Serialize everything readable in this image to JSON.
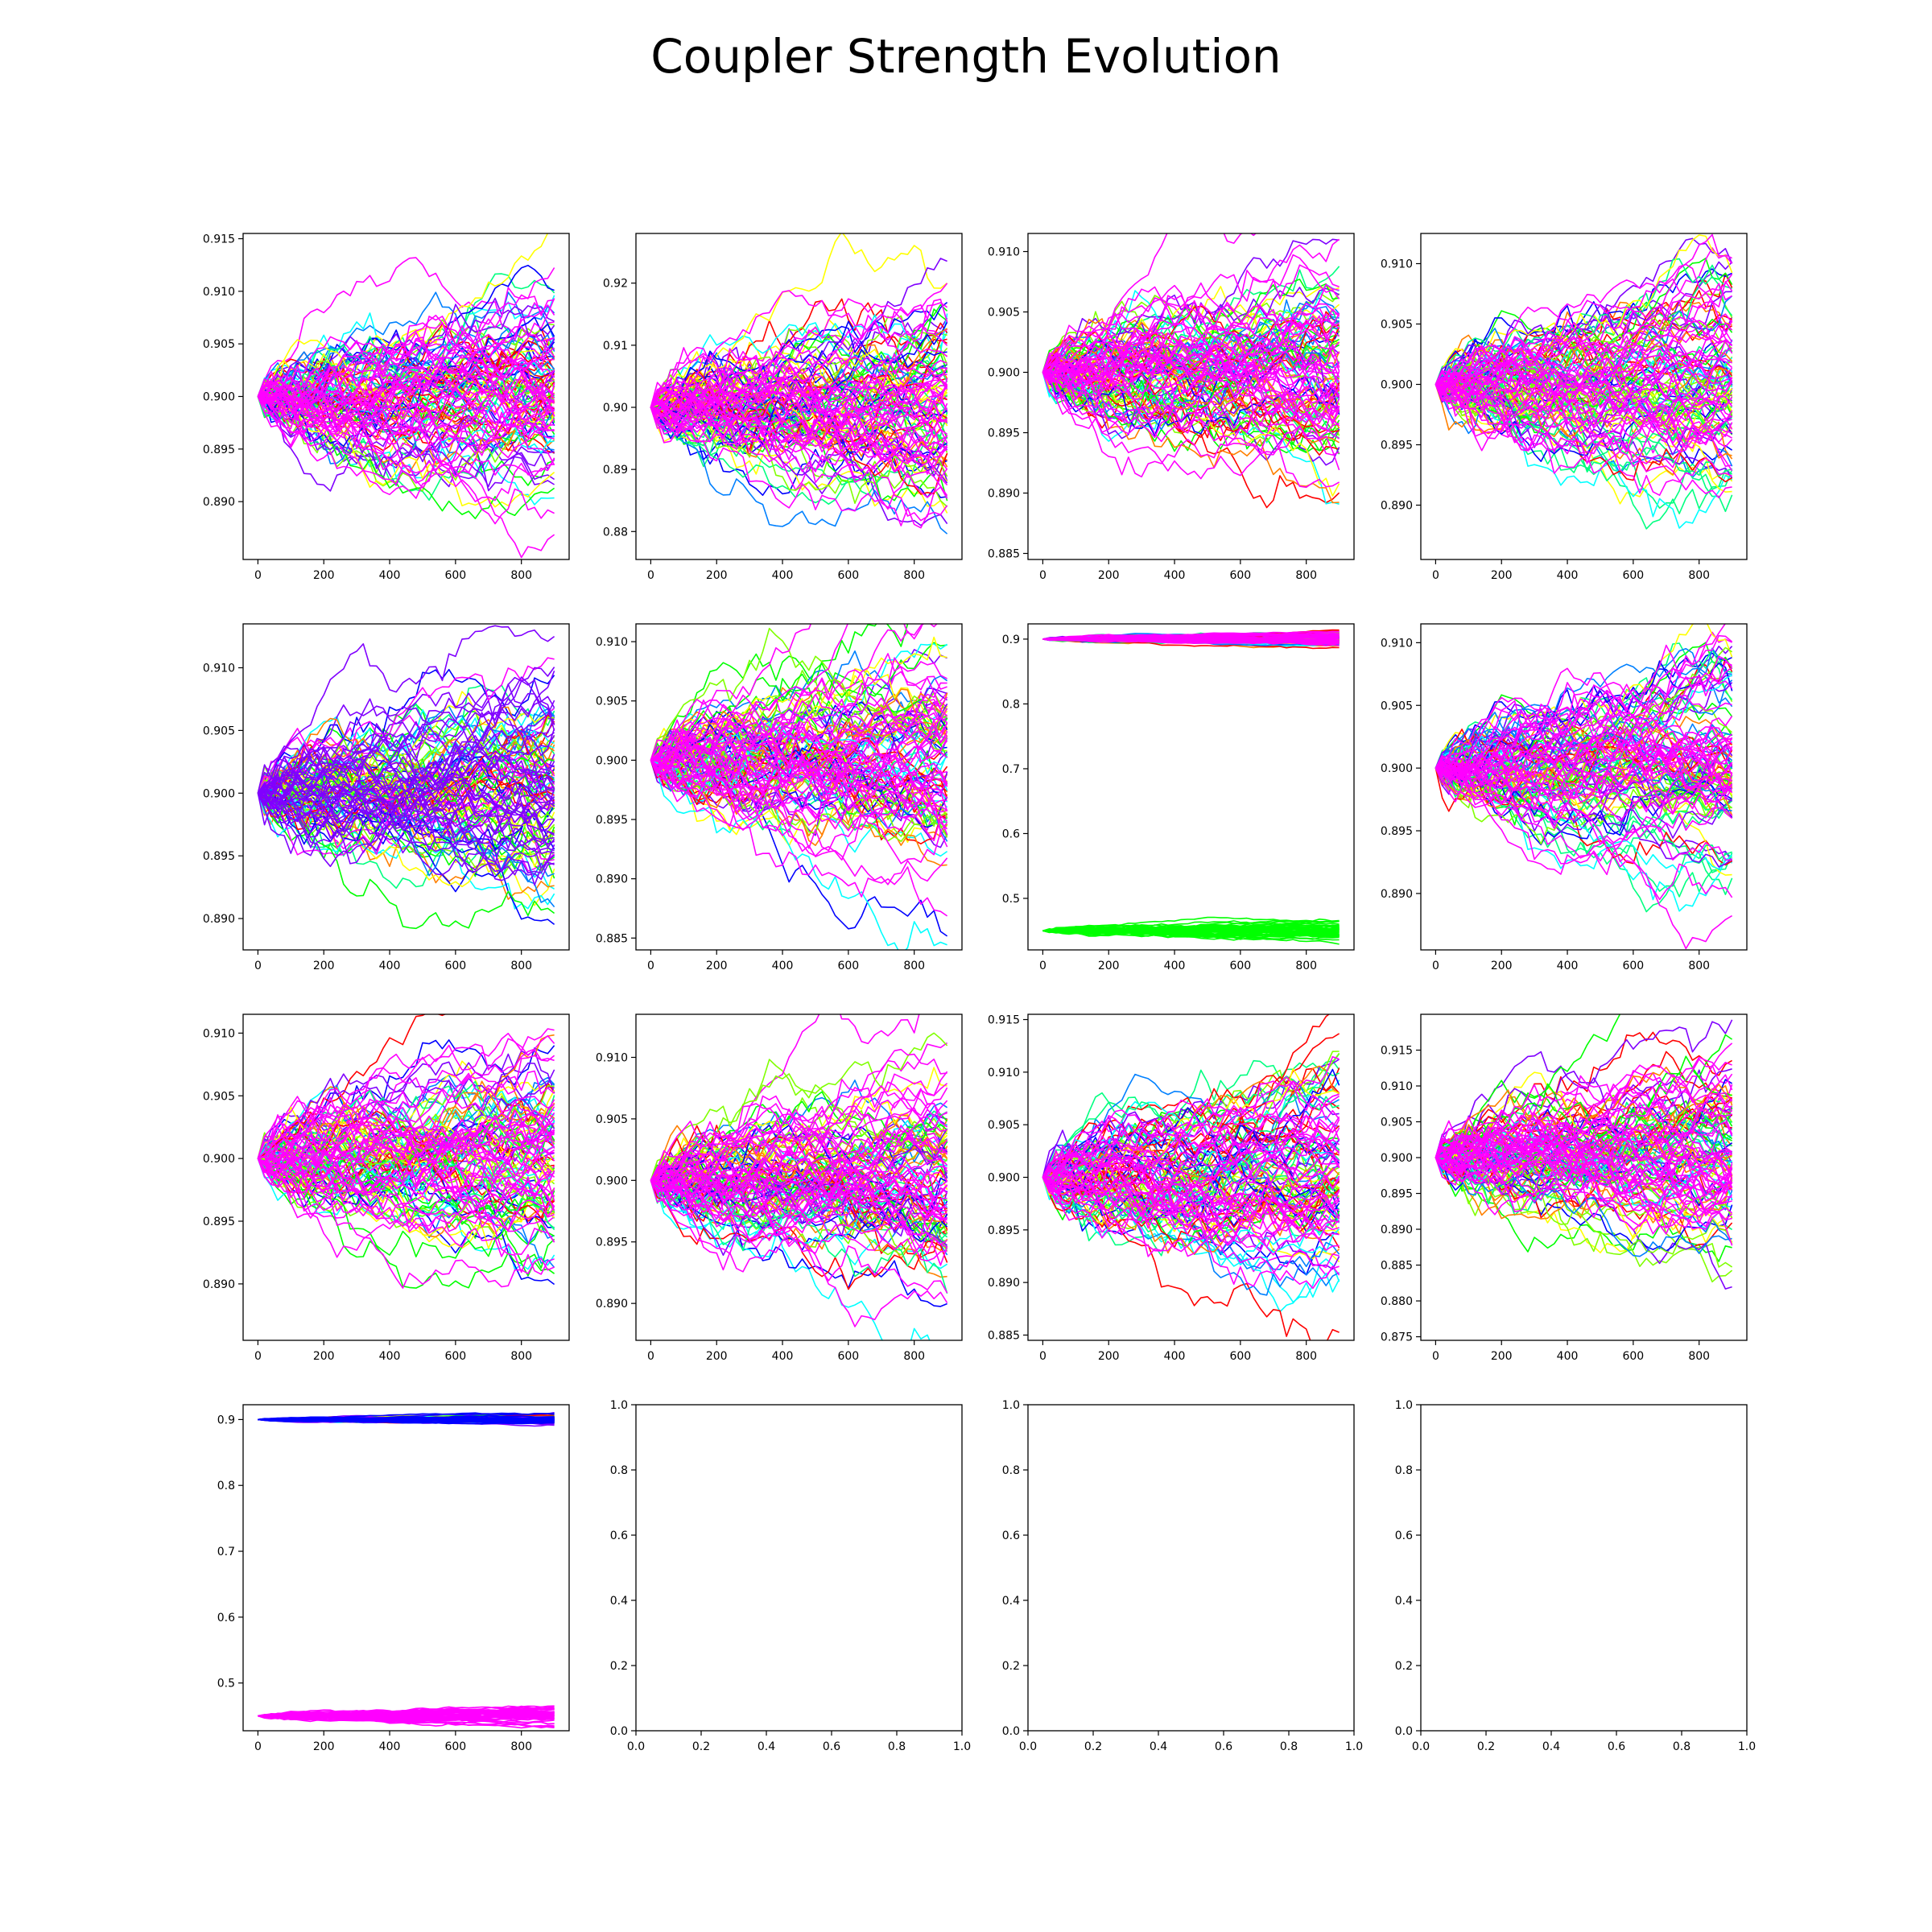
{
  "title": "Coupler Strength Evolution",
  "palette": [
    "#ff0000",
    "#ff8000",
    "#ffff00",
    "#80ff00",
    "#00ff00",
    "#00ff80",
    "#00ffff",
    "#0080ff",
    "#0000ff",
    "#8000ff",
    "#ff00ff"
  ],
  "chart_data": [
    {
      "type": "line",
      "series_count": "many",
      "x_range": [
        0,
        900
      ],
      "ylim": [
        0.8845,
        0.9155
      ],
      "xticks": [
        "0",
        "200",
        "400",
        "600",
        "800"
      ],
      "yticks": [
        "0.890",
        "0.895",
        "0.900",
        "0.905",
        "0.910",
        "0.915"
      ],
      "start": 0.9,
      "spread_at_end": [
        0.887,
        0.914
      ],
      "second_start": null,
      "dominant_color": "#ff00ff"
    },
    {
      "type": "line",
      "series_count": "many",
      "x_range": [
        0,
        900
      ],
      "ylim": [
        0.8755,
        0.928
      ],
      "xticks": [
        "0",
        "200",
        "400",
        "600",
        "800"
      ],
      "yticks": [
        "0.88",
        "0.89",
        "0.90",
        "0.91",
        "0.92"
      ],
      "start": 0.9,
      "spread_at_end": [
        0.878,
        0.925
      ],
      "second_start": null,
      "dominant_color": "#ff00ff"
    },
    {
      "type": "line",
      "series_count": "many",
      "x_range": [
        0,
        900
      ],
      "ylim": [
        0.8845,
        0.9115
      ],
      "xticks": [
        "0",
        "200",
        "400",
        "600",
        "800"
      ],
      "yticks": [
        "0.885",
        "0.890",
        "0.895",
        "0.900",
        "0.905",
        "0.910"
      ],
      "start": 0.9,
      "spread_at_end": [
        0.886,
        0.91
      ],
      "second_start": null,
      "dominant_color": "#ff00ff"
    },
    {
      "type": "line",
      "series_count": "many",
      "x_range": [
        0,
        900
      ],
      "ylim": [
        0.8855,
        0.9125
      ],
      "xticks": [
        "0",
        "200",
        "400",
        "600",
        "800"
      ],
      "yticks": [
        "0.890",
        "0.895",
        "0.900",
        "0.905",
        "0.910"
      ],
      "start": 0.9,
      "spread_at_end": [
        0.887,
        0.911
      ],
      "second_start": null,
      "dominant_color": "#ff00ff"
    },
    {
      "type": "line",
      "series_count": "many",
      "x_range": [
        0,
        900
      ],
      "ylim": [
        0.8875,
        0.9135
      ],
      "xticks": [
        "0",
        "200",
        "400",
        "600",
        "800"
      ],
      "yticks": [
        "0.890",
        "0.895",
        "0.900",
        "0.905",
        "0.910"
      ],
      "start": 0.9,
      "spread_at_end": [
        0.889,
        0.913
      ],
      "second_start": null,
      "dominant_color": "#8000ff"
    },
    {
      "type": "line",
      "series_count": "many",
      "x_range": [
        0,
        900
      ],
      "ylim": [
        0.884,
        0.9115
      ],
      "xticks": [
        "0",
        "200",
        "400",
        "600",
        "800"
      ],
      "yticks": [
        "0.885",
        "0.890",
        "0.895",
        "0.900",
        "0.905",
        "0.910"
      ],
      "start": 0.9,
      "spread_at_end": [
        0.885,
        0.911
      ],
      "second_start": null,
      "dominant_color": "#ff00ff"
    },
    {
      "type": "line",
      "series_count": "many",
      "x_range": [
        0,
        900
      ],
      "ylim": [
        0.4205,
        0.9235
      ],
      "xticks": [
        "0",
        "200",
        "400",
        "600",
        "800"
      ],
      "yticks": [
        "0.5",
        "0.6",
        "0.7",
        "0.8",
        "0.9"
      ],
      "start": 0.9,
      "spread_at_end": [
        0.888,
        0.912
      ],
      "second_start": 0.45,
      "second_spread_at_end": [
        0.43,
        0.47
      ],
      "second_color": "#00ff00",
      "dominant_color": "#ff00ff"
    },
    {
      "type": "line",
      "series_count": "many",
      "x_range": [
        0,
        900
      ],
      "ylim": [
        0.8855,
        0.9115
      ],
      "xticks": [
        "0",
        "200",
        "400",
        "600",
        "800"
      ],
      "yticks": [
        "0.890",
        "0.895",
        "0.900",
        "0.905",
        "0.910"
      ],
      "start": 0.9,
      "spread_at_end": [
        0.887,
        0.91
      ],
      "second_start": null,
      "dominant_color": "#ff00ff"
    },
    {
      "type": "line",
      "series_count": "many",
      "x_range": [
        0,
        900
      ],
      "ylim": [
        0.8855,
        0.9115
      ],
      "xticks": [
        "0",
        "200",
        "400",
        "600",
        "800"
      ],
      "yticks": [
        "0.890",
        "0.895",
        "0.900",
        "0.905",
        "0.910"
      ],
      "start": 0.9,
      "spread_at_end": [
        0.887,
        0.91
      ],
      "second_start": null,
      "dominant_color": "#ff00ff"
    },
    {
      "type": "line",
      "series_count": "many",
      "x_range": [
        0,
        900
      ],
      "ylim": [
        0.887,
        0.9135
      ],
      "xticks": [
        "0",
        "200",
        "400",
        "600",
        "800"
      ],
      "yticks": [
        "0.890",
        "0.895",
        "0.900",
        "0.905",
        "0.910"
      ],
      "start": 0.9,
      "spread_at_end": [
        0.889,
        0.912
      ],
      "second_start": null,
      "dominant_color": "#ff00ff"
    },
    {
      "type": "line",
      "series_count": "many",
      "x_range": [
        0,
        900
      ],
      "ylim": [
        0.8845,
        0.9155
      ],
      "xticks": [
        "0",
        "200",
        "400",
        "600",
        "800"
      ],
      "yticks": [
        "0.885",
        "0.890",
        "0.895",
        "0.900",
        "0.905",
        "0.910",
        "0.915"
      ],
      "start": 0.9,
      "spread_at_end": [
        0.887,
        0.914
      ],
      "second_start": null,
      "dominant_color": "#ff00ff"
    },
    {
      "type": "line",
      "series_count": "many",
      "x_range": [
        0,
        900
      ],
      "ylim": [
        0.8745,
        0.92
      ],
      "xticks": [
        "0",
        "200",
        "400",
        "600",
        "800"
      ],
      "yticks": [
        "0.875",
        "0.880",
        "0.885",
        "0.890",
        "0.895",
        "0.900",
        "0.905",
        "0.910",
        "0.915"
      ],
      "start": 0.9,
      "spread_at_end": [
        0.878,
        0.917
      ],
      "second_start": null,
      "dominant_color": "#ff00ff"
    },
    {
      "type": "line",
      "series_count": "many",
      "x_range": [
        0,
        900
      ],
      "ylim": [
        0.4275,
        0.9225
      ],
      "xticks": [
        "0",
        "200",
        "400",
        "600",
        "800"
      ],
      "yticks": [
        "0.5",
        "0.6",
        "0.7",
        "0.8",
        "0.9"
      ],
      "start": 0.9,
      "spread_at_end": [
        0.893,
        0.91
      ],
      "second_start": 0.45,
      "second_spread_at_end": [
        0.435,
        0.472
      ],
      "second_color": "#ff00ff",
      "dominant_color": "#0000ff"
    },
    {
      "type": "empty",
      "xlim": [
        0,
        1
      ],
      "ylim": [
        0,
        1
      ],
      "xticks": [
        "0.0",
        "0.2",
        "0.4",
        "0.6",
        "0.8",
        "1.0"
      ],
      "yticks": [
        "0.0",
        "0.2",
        "0.4",
        "0.6",
        "0.8",
        "1.0"
      ]
    },
    {
      "type": "empty",
      "xlim": [
        0,
        1
      ],
      "ylim": [
        0,
        1
      ],
      "xticks": [
        "0.0",
        "0.2",
        "0.4",
        "0.6",
        "0.8",
        "1.0"
      ],
      "yticks": [
        "0.0",
        "0.2",
        "0.4",
        "0.6",
        "0.8",
        "1.0"
      ]
    },
    {
      "type": "empty",
      "xlim": [
        0,
        1
      ],
      "ylim": [
        0,
        1
      ],
      "xticks": [
        "0.0",
        "0.2",
        "0.4",
        "0.6",
        "0.8",
        "1.0"
      ],
      "yticks": [
        "0.0",
        "0.2",
        "0.4",
        "0.6",
        "0.8",
        "1.0"
      ]
    }
  ]
}
